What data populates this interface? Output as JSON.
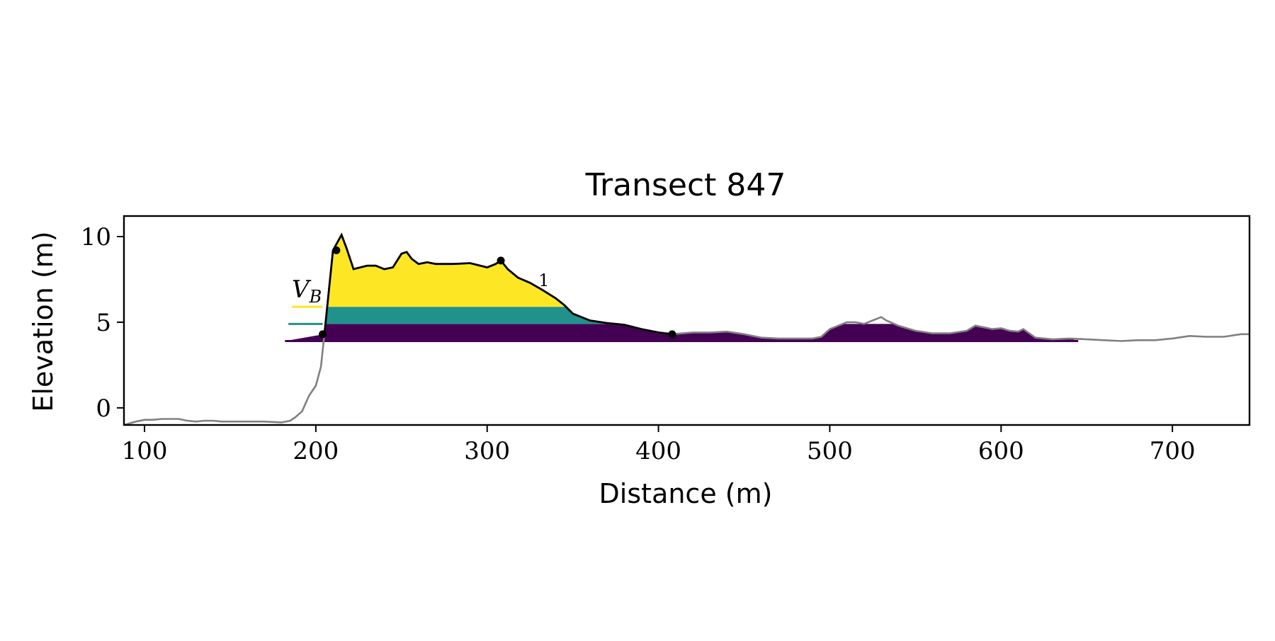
{
  "chart_data": {
    "type": "area",
    "title": "Transect 847",
    "xlabel": "Distance (m)",
    "ylabel": "Elevation (m)",
    "xlim": [
      88,
      745
    ],
    "ylim": [
      -1,
      11.2
    ],
    "xticks": [
      100,
      200,
      300,
      400,
      500,
      600,
      700
    ],
    "yticks": [
      0,
      5,
      10
    ],
    "grid": false,
    "legend": "none",
    "annotations": [
      "V_B",
      "1"
    ],
    "profile": {
      "color": "#808080",
      "x": [
        88,
        95,
        100,
        105,
        110,
        115,
        120,
        125,
        130,
        135,
        140,
        145,
        150,
        160,
        170,
        180,
        185,
        188,
        192,
        196,
        200,
        203,
        205,
        210,
        215,
        218,
        222,
        226,
        230,
        235,
        240,
        245,
        250,
        253,
        256,
        260,
        265,
        270,
        280,
        290,
        300,
        305,
        308,
        312,
        318,
        325,
        332,
        340,
        345,
        350,
        360,
        370,
        380,
        390,
        400,
        408,
        420,
        430,
        440,
        450,
        460,
        470,
        480,
        490,
        495,
        500,
        505,
        510,
        515,
        520,
        525,
        530,
        533,
        540,
        550,
        560,
        570,
        580,
        585,
        590,
        595,
        600,
        605,
        610,
        613,
        620,
        630,
        640,
        650,
        660,
        670,
        680,
        690,
        700,
        710,
        720,
        730,
        740,
        745
      ],
      "y": [
        -1,
        -0.8,
        -0.7,
        -0.7,
        -0.65,
        -0.65,
        -0.65,
        -0.75,
        -0.8,
        -0.75,
        -0.75,
        -0.8,
        -0.8,
        -0.8,
        -0.8,
        -0.85,
        -0.75,
        -0.55,
        -0.2,
        0.7,
        1.3,
        2.4,
        4.3,
        9.2,
        10.1,
        9.3,
        8.1,
        8.2,
        8.3,
        8.3,
        8.1,
        8.2,
        9.0,
        9.1,
        8.7,
        8.4,
        8.5,
        8.4,
        8.4,
        8.45,
        8.2,
        8.4,
        8.6,
        8.1,
        7.6,
        7.3,
        6.9,
        6.4,
        6.0,
        5.5,
        5.1,
        4.95,
        4.85,
        4.6,
        4.4,
        4.3,
        4.4,
        4.4,
        4.45,
        4.3,
        4.1,
        4.05,
        4.05,
        4.05,
        4.15,
        4.6,
        4.8,
        5.0,
        5.0,
        4.9,
        5.1,
        5.3,
        5.1,
        4.8,
        4.5,
        4.35,
        4.35,
        4.5,
        4.8,
        4.7,
        4.6,
        4.65,
        4.5,
        4.45,
        4.6,
        4.1,
        4.0,
        4.05,
        4.0,
        3.95,
        3.9,
        3.95,
        3.95,
        4.05,
        4.2,
        4.15,
        4.15,
        4.3,
        4.3
      ]
    },
    "dune": {
      "color": "#000000",
      "start_index": 22,
      "end_index": 55,
      "markers": [
        [
          204,
          4.3
        ],
        [
          212,
          9.2
        ],
        [
          308,
          8.6
        ],
        [
          408,
          4.3
        ]
      ]
    },
    "bands": [
      {
        "color": "#440154",
        "y0": 3.9,
        "y1": 4.9,
        "line_x_start": 182
      },
      {
        "color": "#21918c",
        "y0": 4.9,
        "y1": 5.9,
        "line_x_start": 184
      },
      {
        "color": "#fde725",
        "y0": 5.9,
        "y1": 11.2,
        "line_x_start": 186
      }
    ],
    "baseline_purple_extent": [
      182,
      645
    ]
  }
}
